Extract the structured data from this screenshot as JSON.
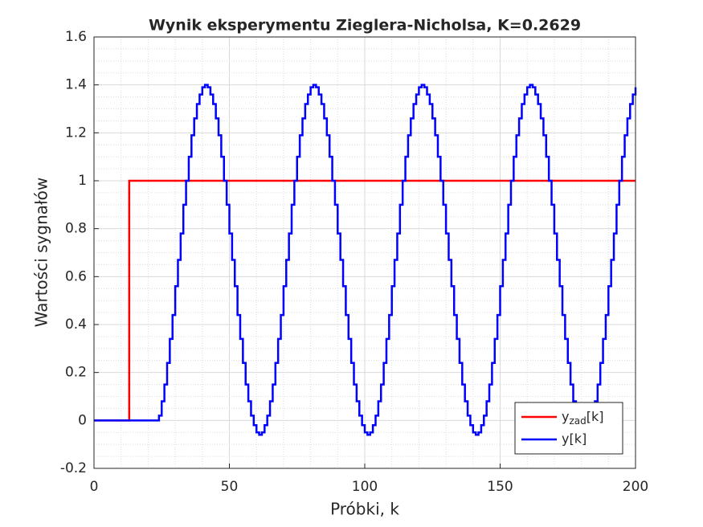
{
  "chart_data": {
    "type": "stairs",
    "title": "Wynik eksperymentu Zieglera-Nicholsa, K=0.2629",
    "xlabel": "Próbki, k",
    "ylabel": "Wartości sygnałów",
    "xlim": [
      0,
      200
    ],
    "xticks": [
      0,
      50,
      100,
      150,
      200
    ],
    "ylim": [
      -0.2,
      1.6
    ],
    "yticks": [
      -0.2,
      0,
      0.2,
      0.4,
      0.6,
      0.8,
      1,
      1.2,
      1.4,
      1.6
    ],
    "grid": true,
    "minor_grid": true,
    "legend": "lower right",
    "x": [
      0,
      1,
      2,
      3,
      4,
      5,
      6,
      7,
      8,
      9,
      10,
      11,
      12,
      13,
      14,
      15,
      16,
      17,
      18,
      19,
      20,
      21,
      22,
      23,
      24,
      25,
      26,
      27,
      28,
      29,
      30,
      31,
      32,
      33,
      34,
      35,
      36,
      37,
      38,
      39,
      40,
      41,
      42,
      43,
      44,
      45,
      46,
      47,
      48,
      49,
      50,
      51,
      52,
      53,
      54,
      55,
      56,
      57,
      58,
      59,
      60,
      61,
      62,
      63,
      64,
      65,
      66,
      67,
      68,
      69,
      70,
      71,
      72,
      73,
      74,
      75,
      76,
      77,
      78,
      79,
      80,
      81,
      82,
      83,
      84,
      85,
      86,
      87,
      88,
      89,
      90,
      91,
      92,
      93,
      94,
      95,
      96,
      97,
      98,
      99,
      100,
      101,
      102,
      103,
      104,
      105,
      106,
      107,
      108,
      109,
      110,
      111,
      112,
      113,
      114,
      115,
      116,
      117,
      118,
      119,
      120,
      121,
      122,
      123,
      124,
      125,
      126,
      127,
      128,
      129,
      130,
      131,
      132,
      133,
      134,
      135,
      136,
      137,
      138,
      139,
      140,
      141,
      142,
      143,
      144,
      145,
      146,
      147,
      148,
      149,
      150,
      151,
      152,
      153,
      154,
      155,
      156,
      157,
      158,
      159,
      160,
      161,
      162,
      163,
      164,
      165,
      166,
      167,
      168,
      169,
      170,
      171,
      172,
      173,
      174,
      175,
      176,
      177,
      178,
      179,
      180,
      181,
      182,
      183,
      184,
      185,
      186,
      187,
      188,
      189,
      190,
      191,
      192,
      193,
      194,
      195,
      196,
      197,
      198,
      199,
      200
    ],
    "series": [
      {
        "name": "y_zad[k]",
        "color": "#ff0000",
        "values": [
          0,
          0,
          0,
          0,
          0,
          0,
          0,
          0,
          0,
          0,
          0,
          0,
          0,
          1,
          1,
          1,
          1,
          1,
          1,
          1,
          1,
          1,
          1,
          1,
          1,
          1,
          1,
          1,
          1,
          1,
          1,
          1,
          1,
          1,
          1,
          1,
          1,
          1,
          1,
          1,
          1,
          1,
          1,
          1,
          1,
          1,
          1,
          1,
          1,
          1,
          1,
          1,
          1,
          1,
          1,
          1,
          1,
          1,
          1,
          1,
          1,
          1,
          1,
          1,
          1,
          1,
          1,
          1,
          1,
          1,
          1,
          1,
          1,
          1,
          1,
          1,
          1,
          1,
          1,
          1,
          1,
          1,
          1,
          1,
          1,
          1,
          1,
          1,
          1,
          1,
          1,
          1,
          1,
          1,
          1,
          1,
          1,
          1,
          1,
          1,
          1,
          1,
          1,
          1,
          1,
          1,
          1,
          1,
          1,
          1,
          1,
          1,
          1,
          1,
          1,
          1,
          1,
          1,
          1,
          1,
          1,
          1,
          1,
          1,
          1,
          1,
          1,
          1,
          1,
          1,
          1,
          1,
          1,
          1,
          1,
          1,
          1,
          1,
          1,
          1,
          1,
          1,
          1,
          1,
          1,
          1,
          1,
          1,
          1,
          1,
          1,
          1,
          1,
          1,
          1,
          1,
          1,
          1,
          1,
          1,
          1,
          1,
          1,
          1,
          1,
          1,
          1,
          1,
          1,
          1,
          1,
          1,
          1,
          1,
          1,
          1,
          1,
          1,
          1,
          1,
          1,
          1,
          1,
          1,
          1,
          1,
          1,
          1,
          1,
          1,
          1,
          1,
          1,
          1,
          1,
          1,
          1,
          1,
          1,
          1,
          1
        ]
      },
      {
        "name": "y[k]",
        "color": "#0000ff",
        "values": [
          0,
          0,
          0,
          0,
          0,
          0,
          0,
          0,
          0,
          0,
          0,
          0,
          0,
          0,
          0,
          0,
          0,
          0,
          0,
          0,
          0,
          0,
          0,
          0,
          0.02,
          0.08,
          0.15,
          0.24,
          0.34,
          0.44,
          0.56,
          0.67,
          0.78,
          0.9,
          1.0,
          1.1,
          1.19,
          1.26,
          1.32,
          1.36,
          1.39,
          1.4,
          1.39,
          1.36,
          1.32,
          1.26,
          1.19,
          1.1,
          1.0,
          0.9,
          0.78,
          0.67,
          0.56,
          0.44,
          0.34,
          0.24,
          0.15,
          0.08,
          0.02,
          -0.02,
          -0.05,
          -0.06,
          -0.05,
          -0.02,
          0.02,
          0.08,
          0.15,
          0.24,
          0.34,
          0.44,
          0.56,
          0.67,
          0.78,
          0.9,
          1.0,
          1.1,
          1.19,
          1.26,
          1.32,
          1.36,
          1.39,
          1.4,
          1.39,
          1.36,
          1.32,
          1.26,
          1.19,
          1.1,
          1.0,
          0.9,
          0.78,
          0.67,
          0.56,
          0.44,
          0.34,
          0.24,
          0.15,
          0.08,
          0.02,
          -0.02,
          -0.05,
          -0.06,
          -0.05,
          -0.02,
          0.02,
          0.08,
          0.15,
          0.24,
          0.34,
          0.44,
          0.56,
          0.67,
          0.78,
          0.9,
          1.0,
          1.1,
          1.19,
          1.26,
          1.32,
          1.36,
          1.39,
          1.4,
          1.39,
          1.36,
          1.32,
          1.26,
          1.19,
          1.1,
          1.0,
          0.9,
          0.78,
          0.67,
          0.56,
          0.44,
          0.34,
          0.24,
          0.15,
          0.08,
          0.02,
          -0.02,
          -0.05,
          -0.06,
          -0.05,
          -0.02,
          0.02,
          0.08,
          0.15,
          0.24,
          0.34,
          0.44,
          0.56,
          0.67,
          0.78,
          0.9,
          1.0,
          1.1,
          1.19,
          1.26,
          1.32,
          1.36,
          1.39,
          1.4,
          1.39,
          1.36,
          1.32,
          1.26,
          1.19,
          1.1,
          1.0,
          0.9,
          0.78,
          0.67,
          0.56,
          0.44,
          0.34,
          0.24,
          0.15,
          0.08,
          0.02,
          -0.02,
          -0.05,
          -0.06,
          -0.05,
          -0.02,
          0.02,
          0.08,
          0.15,
          0.24,
          0.34,
          0.44,
          0.56,
          0.67,
          0.78,
          0.9,
          1.0,
          1.1,
          1.19,
          1.26,
          1.32,
          1.36,
          1.39
        ]
      }
    ]
  }
}
